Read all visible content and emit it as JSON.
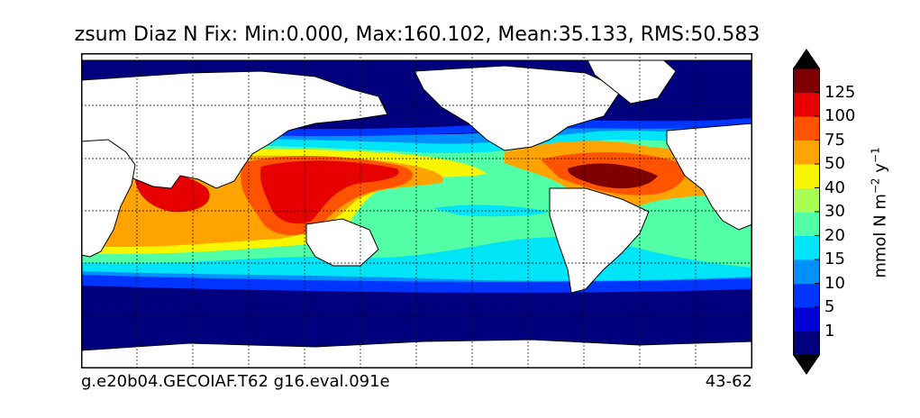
{
  "title": "zsum Diaz N Fix: Min:0.000, Max:160.102, Mean:35.133, RMS:50.583",
  "footer": {
    "case_name": "g.e20b04.GECOIAF.T62 g16.eval.091e",
    "years": "43-62"
  },
  "colorbar": {
    "unit_text": "mmol N m",
    "unit_exp1": "−2",
    "unit_mid": " y",
    "unit_exp2": "−1",
    "levels": [
      "1",
      "5",
      "10",
      "15",
      "20",
      "30",
      "40",
      "50",
      "75",
      "100",
      "125"
    ],
    "colors": [
      "#00007f",
      "#0000d5",
      "#0034ff",
      "#0090ff",
      "#00e4f8",
      "#52ffa6",
      "#a6ff52",
      "#f8f500",
      "#ffa300",
      "#ff5300",
      "#e60000",
      "#7f0000"
    ],
    "extend": "both"
  },
  "map": {
    "land_color": "#ffffff",
    "gridlines": "dotted"
  }
}
